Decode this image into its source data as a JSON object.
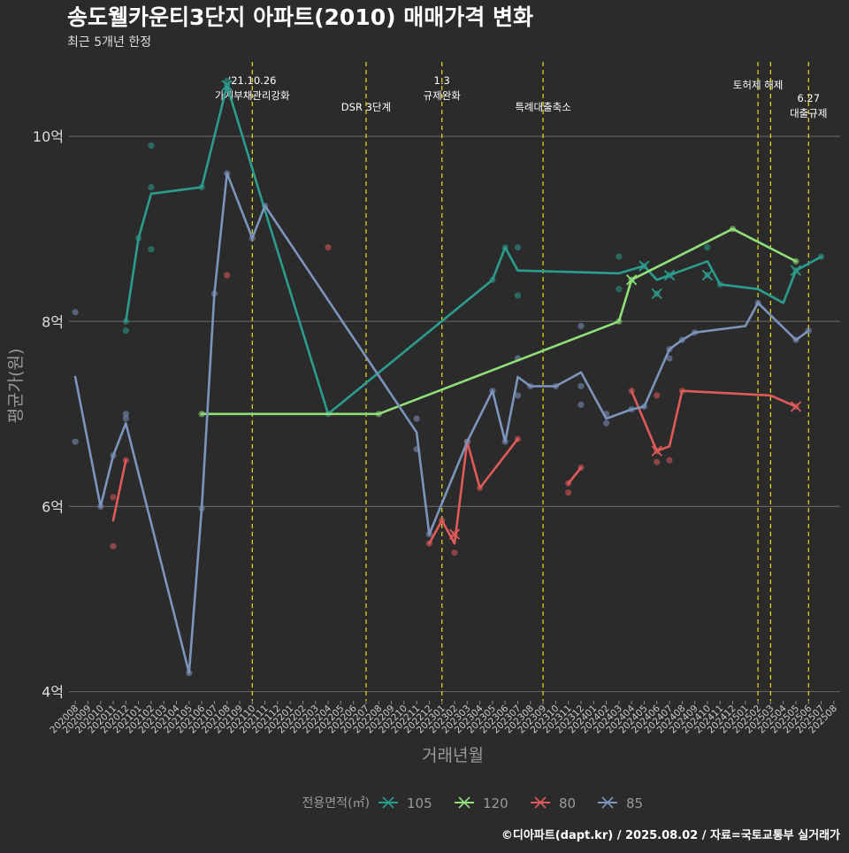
{
  "chart_data": {
    "type": "line",
    "title": "송도웰카운티3단지 아파트(2010) 매매가격 변화",
    "subtitle": "최근 5개년 한정",
    "xlabel": "거래년월",
    "ylabel": "평균가(원)",
    "credit": "©디아파트(dapt.kr) / 2025.08.02 / 자료=국토교통부 실거래가",
    "legend_title": "전용면적(㎡)",
    "legend_position": "bottom",
    "grid": true,
    "ylim": [
      3.9,
      10.9
    ],
    "y_ticks": [
      {
        "value": 4,
        "label": "4억"
      },
      {
        "value": 6,
        "label": "6억"
      },
      {
        "value": 8,
        "label": "8억"
      },
      {
        "value": 10,
        "label": "10억"
      }
    ],
    "categories": [
      "202008",
      "202009",
      "202010",
      "202011",
      "202012",
      "202101",
      "202102",
      "202103",
      "202104",
      "202105",
      "202106",
      "202107",
      "202108",
      "202109",
      "202110",
      "202111",
      "202112",
      "202201",
      "202202",
      "202203",
      "202204",
      "202205",
      "202206",
      "202207",
      "202208",
      "202209",
      "202210",
      "202211",
      "202212",
      "202301",
      "202302",
      "202303",
      "202304",
      "202305",
      "202306",
      "202307",
      "202308",
      "202309",
      "202310",
      "202311",
      "202312",
      "202401",
      "202402",
      "202403",
      "202404",
      "202405",
      "202406",
      "202407",
      "202408",
      "202409",
      "202410",
      "202411",
      "202412",
      "202501",
      "202502",
      "202503",
      "202504",
      "202505",
      "202506",
      "202507",
      "202508"
    ],
    "events": [
      {
        "month": "202110",
        "lines": [
          "'21.10.26",
          "가계부채관리강화"
        ],
        "level": 1
      },
      {
        "month": "202207",
        "lines": [
          "DSR 3단계"
        ],
        "level": 2
      },
      {
        "month": "202301",
        "lines": [
          "1.3",
          "규제완화"
        ],
        "level": 1
      },
      {
        "month": "202309",
        "lines": [
          "특례대출축소"
        ],
        "level": 2
      },
      {
        "month": "202502",
        "lines": [
          "토허제 해제"
        ],
        "level": 1
      },
      {
        "month": "202503",
        "lines": [],
        "level": 1
      },
      {
        "month": "202506",
        "lines": [
          "6.27",
          "대출규제"
        ],
        "level": 3
      }
    ],
    "series": [
      {
        "name": "105",
        "color": "#2a9d8f",
        "line": [
          [
            "202012",
            8.0
          ],
          [
            "202101",
            8.9
          ],
          [
            "202102",
            9.38
          ],
          [
            "202106",
            9.45
          ],
          [
            "202108",
            10.55
          ],
          [
            "202111",
            9.2
          ],
          [
            "202204",
            7.0
          ],
          [
            "202305",
            8.45
          ],
          [
            "202306",
            8.8
          ],
          [
            "202307",
            8.55
          ],
          [
            "202403",
            8.52
          ],
          [
            "202405",
            8.6
          ],
          [
            "202406",
            8.45
          ],
          [
            "202407",
            8.5
          ],
          [
            "202410",
            8.65
          ],
          [
            "202411",
            8.4
          ],
          [
            "202502",
            8.35
          ],
          [
            "202504",
            8.2
          ],
          [
            "202505",
            8.55
          ],
          [
            "202507",
            8.7
          ]
        ],
        "points": [
          [
            "202012",
            7.9
          ],
          [
            "202012",
            8.0
          ],
          [
            "202101",
            8.9
          ],
          [
            "202102",
            9.9
          ],
          [
            "202102",
            9.45
          ],
          [
            "202102",
            8.78
          ],
          [
            "202106",
            9.45
          ],
          [
            "202108",
            10.6
          ],
          [
            "202108",
            10.55
          ],
          [
            "202204",
            7.0
          ],
          [
            "202305",
            8.45
          ],
          [
            "202306",
            8.8
          ],
          [
            "202307",
            8.8
          ],
          [
            "202307",
            8.28
          ],
          [
            "202403",
            8.7
          ],
          [
            "202403",
            8.35
          ],
          [
            "202405",
            8.6
          ],
          [
            "202406",
            8.3
          ],
          [
            "202407",
            8.5
          ],
          [
            "202410",
            8.8
          ],
          [
            "202410",
            8.5
          ],
          [
            "202411",
            8.4
          ],
          [
            "202505",
            8.55
          ],
          [
            "202507",
            8.7
          ]
        ],
        "crosses": [
          [
            "202108",
            10.55
          ],
          [
            "202405",
            8.6
          ],
          [
            "202406",
            8.3
          ],
          [
            "202407",
            8.5
          ],
          [
            "202410",
            8.5
          ],
          [
            "202505",
            8.55
          ]
        ]
      },
      {
        "name": "120",
        "color": "#8fe07a",
        "line": [
          [
            "202106",
            7.0
          ],
          [
            "202208",
            7.0
          ],
          [
            "202403",
            8.0
          ],
          [
            "202404",
            8.45
          ],
          [
            "202412",
            9.0
          ],
          [
            "202505",
            8.65
          ]
        ],
        "points": [
          [
            "202106",
            7.0
          ],
          [
            "202208",
            7.0
          ],
          [
            "202403",
            8.0
          ],
          [
            "202404",
            8.45
          ],
          [
            "202412",
            9.0
          ],
          [
            "202505",
            8.65
          ]
        ],
        "crosses": [
          [
            "202404",
            8.45
          ]
        ]
      },
      {
        "name": "80",
        "color": "#e05a5a",
        "line": [
          [
            "202011",
            5.85
          ],
          [
            "202012",
            6.5
          ],
          [
            null,
            null
          ],
          [
            "202212",
            5.6
          ],
          [
            "202301",
            5.85
          ],
          [
            "202302",
            5.6
          ],
          [
            "202303",
            6.7
          ],
          [
            "202304",
            6.2
          ],
          [
            "202307",
            6.73
          ],
          [
            null,
            null
          ],
          [
            "202311",
            6.25
          ],
          [
            "202312",
            6.42
          ],
          [
            null,
            null
          ],
          [
            "202404",
            7.25
          ],
          [
            "202406",
            6.6
          ],
          [
            "202407",
            6.65
          ],
          [
            "202408",
            7.25
          ],
          [
            "202503",
            7.2
          ],
          [
            "202505",
            7.08
          ]
        ],
        "points": [
          [
            "202011",
            6.1
          ],
          [
            "202011",
            5.57
          ],
          [
            "202012",
            6.5
          ],
          [
            "202204",
            8.8
          ],
          [
            "202108",
            8.5
          ],
          [
            "202212",
            5.6
          ],
          [
            "202301",
            5.85
          ],
          [
            "202302",
            5.5
          ],
          [
            "202302",
            5.7
          ],
          [
            "202303",
            6.7
          ],
          [
            "202304",
            6.2
          ],
          [
            "202307",
            6.73
          ],
          [
            "202311",
            6.25
          ],
          [
            "202311",
            6.15
          ],
          [
            "202312",
            6.42
          ],
          [
            "202404",
            7.25
          ],
          [
            "202406",
            7.2
          ],
          [
            "202406",
            6.6
          ],
          [
            "202406",
            6.48
          ],
          [
            "202407",
            6.5
          ],
          [
            "202408",
            7.25
          ],
          [
            "202505",
            7.08
          ]
        ],
        "crosses": [
          [
            "202302",
            5.7
          ],
          [
            "202406",
            6.6
          ],
          [
            "202505",
            7.08
          ]
        ]
      },
      {
        "name": "85",
        "color": "#7d94bd",
        "line": [
          [
            "202008",
            7.4
          ],
          [
            "202010",
            6.0
          ],
          [
            "202011",
            6.55
          ],
          [
            "202012",
            6.9
          ],
          [
            "202105",
            4.2
          ],
          [
            "202106",
            5.98
          ],
          [
            "202107",
            8.3
          ],
          [
            "202108",
            9.6
          ],
          [
            "202110",
            8.9
          ],
          [
            "202111",
            9.25
          ],
          [
            "202211",
            6.8
          ],
          [
            "202212",
            5.7
          ],
          [
            "202303",
            6.7
          ],
          [
            "202305",
            7.25
          ],
          [
            "202306",
            6.7
          ],
          [
            "202307",
            7.4
          ],
          [
            "202308",
            7.3
          ],
          [
            "202310",
            7.3
          ],
          [
            "202312",
            7.45
          ],
          [
            "202402",
            6.95
          ],
          [
            "202404",
            7.05
          ],
          [
            "202405",
            7.08
          ],
          [
            "202407",
            7.7
          ],
          [
            "202408",
            7.8
          ],
          [
            "202409",
            7.88
          ],
          [
            "202501",
            7.95
          ],
          [
            "202502",
            8.2
          ],
          [
            "202505",
            7.8
          ],
          [
            "202506",
            7.9
          ]
        ],
        "points": [
          [
            "202008",
            8.1
          ],
          [
            "202008",
            6.7
          ],
          [
            "202010",
            6.0
          ],
          [
            "202011",
            6.55
          ],
          [
            "202012",
            7.0
          ],
          [
            "202012",
            6.95
          ],
          [
            "202105",
            4.2
          ],
          [
            "202106",
            5.98
          ],
          [
            "202107",
            8.3
          ],
          [
            "202108",
            9.6
          ],
          [
            "202110",
            8.9
          ],
          [
            "202111",
            9.25
          ],
          [
            "202211",
            6.95
          ],
          [
            "202211",
            6.62
          ],
          [
            "202212",
            5.7
          ],
          [
            "202303",
            6.7
          ],
          [
            "202305",
            7.25
          ],
          [
            "202306",
            6.7
          ],
          [
            "202307",
            7.6
          ],
          [
            "202307",
            7.2
          ],
          [
            "202308",
            7.3
          ],
          [
            "202310",
            7.3
          ],
          [
            "202312",
            7.95
          ],
          [
            "202312",
            7.3
          ],
          [
            "202312",
            7.1
          ],
          [
            "202402",
            6.9
          ],
          [
            "202402",
            7.0
          ],
          [
            "202404",
            7.05
          ],
          [
            "202405",
            7.08
          ],
          [
            "202407",
            7.7
          ],
          [
            "202407",
            7.6
          ],
          [
            "202408",
            7.8
          ],
          [
            "202409",
            7.88
          ],
          [
            "202502",
            8.2
          ],
          [
            "202505",
            7.8
          ],
          [
            "202506",
            7.9
          ]
        ],
        "crosses": []
      }
    ]
  }
}
